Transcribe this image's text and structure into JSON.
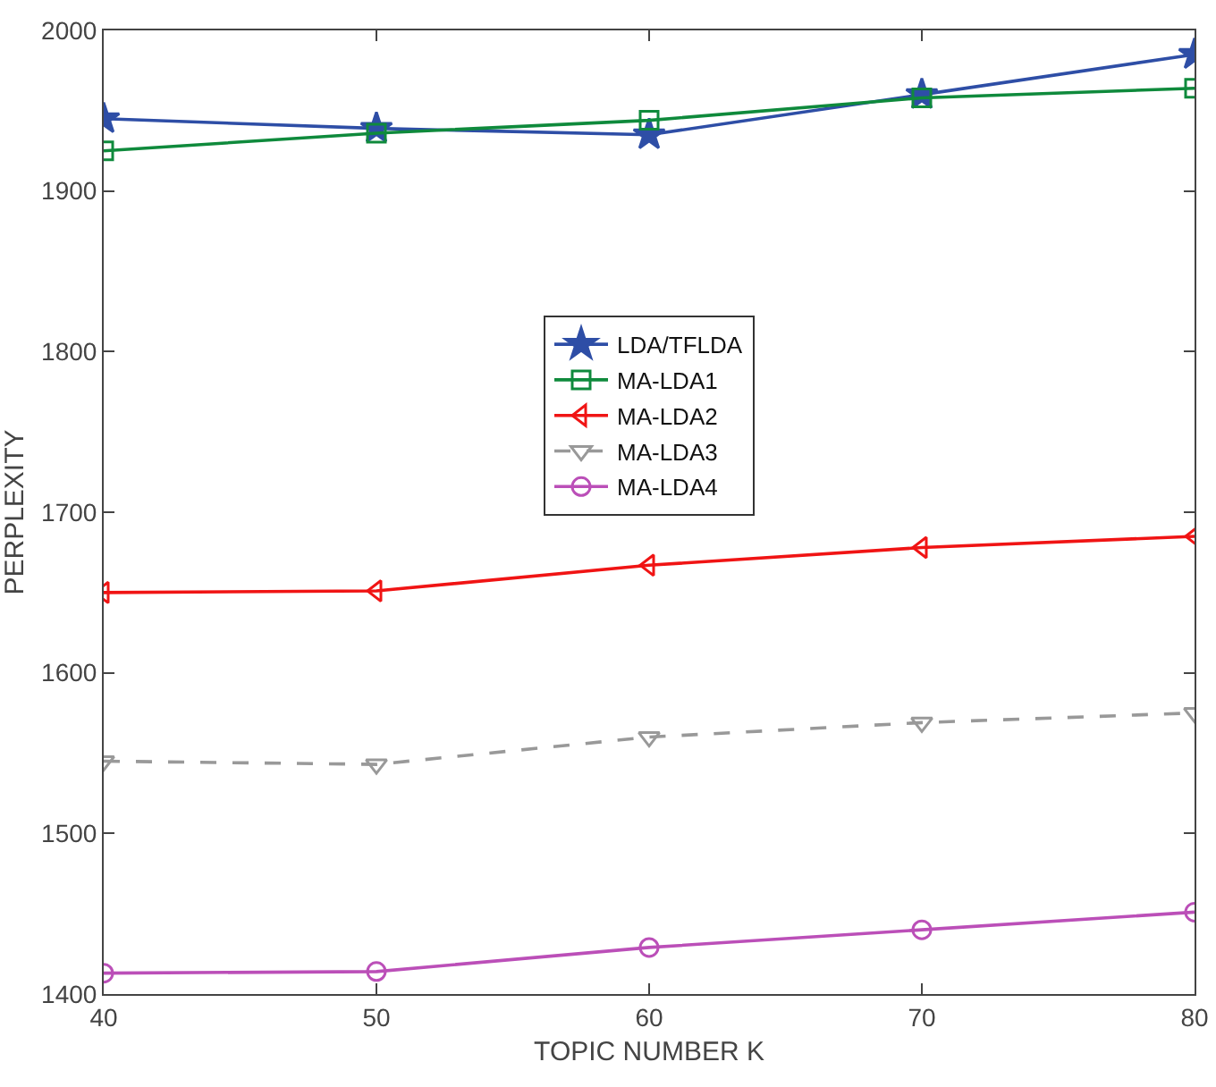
{
  "chart_data": {
    "type": "line",
    "xlabel": "TOPIC NUMBER K",
    "ylabel": "PERPLEXITY",
    "x": [
      40,
      50,
      60,
      70,
      80
    ],
    "series": [
      {
        "name": "LDA/TFLDA",
        "color": "#2e4ea6",
        "marker": "star",
        "line_style": "solid",
        "values": [
          1945,
          1939,
          1935,
          1960,
          1985
        ]
      },
      {
        "name": "MA-LDA1",
        "color": "#0f8a3c",
        "marker": "square",
        "line_style": "solid",
        "values": [
          1925,
          1936,
          1944,
          1958,
          1964
        ]
      },
      {
        "name": "MA-LDA2",
        "color": "#f01414",
        "marker": "triangle-left",
        "line_style": "solid",
        "values": [
          1650,
          1651,
          1667,
          1678,
          1685
        ]
      },
      {
        "name": "MA-LDA3",
        "color": "#999999",
        "marker": "triangle-down",
        "line_style": "dashed",
        "values": [
          1545,
          1543,
          1560,
          1569,
          1575
        ]
      },
      {
        "name": "MA-LDA4",
        "color": "#bb4fb8",
        "marker": "circle",
        "line_style": "solid",
        "values": [
          1413,
          1414,
          1429,
          1440,
          1451
        ]
      }
    ],
    "xlim": [
      40,
      80
    ],
    "xticks": [
      40,
      50,
      60,
      70,
      80
    ],
    "ylim": [
      1400,
      2000
    ],
    "yticks": [
      1400,
      1500,
      1600,
      1700,
      1800,
      1900,
      2000
    ],
    "grid": false,
    "legend": "center"
  }
}
